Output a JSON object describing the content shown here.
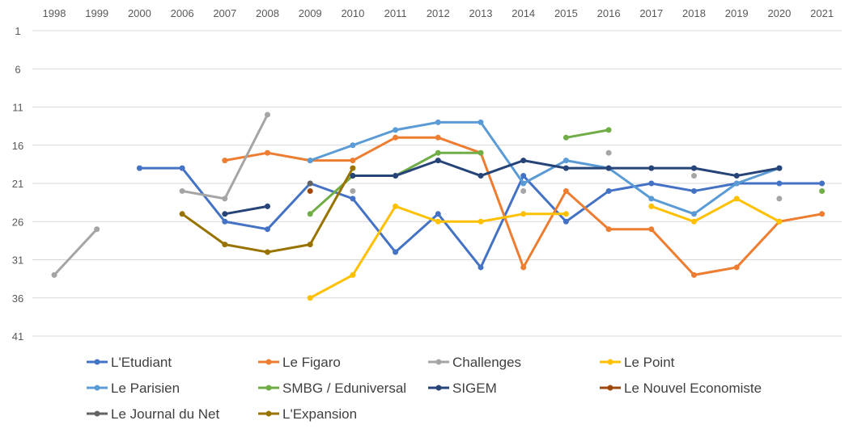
{
  "chart_data": {
    "type": "line",
    "categories": [
      "1998",
      "1999",
      "2000",
      "2006",
      "2007",
      "2008",
      "2009",
      "2010",
      "2011",
      "2012",
      "2013",
      "2014",
      "2015",
      "2016",
      "2017",
      "2018",
      "2019",
      "2020",
      "2021"
    ],
    "y_ticks": [
      "1",
      "6",
      "11",
      "16",
      "21",
      "26",
      "31",
      "36",
      "41"
    ],
    "ylim": [
      1,
      41
    ],
    "y_reversed": true,
    "x_axis_position": "top",
    "grid": true,
    "legend_position": "bottom",
    "series": [
      {
        "name": "L'Etudiant",
        "color": "#4472C4",
        "values": [
          null,
          null,
          19,
          19,
          26,
          27,
          21,
          23,
          30,
          25,
          32,
          20,
          26,
          22,
          21,
          22,
          21,
          21,
          21
        ]
      },
      {
        "name": "Le Figaro",
        "color": "#ED7D31",
        "values": [
          null,
          null,
          null,
          null,
          18,
          17,
          18,
          18,
          15,
          15,
          17,
          32,
          22,
          27,
          27,
          33,
          32,
          26,
          25
        ]
      },
      {
        "name": "Challenges",
        "color": "#A5A5A5",
        "values": [
          33,
          27,
          null,
          22,
          23,
          12,
          null,
          22,
          null,
          null,
          null,
          22,
          null,
          17,
          null,
          20,
          null,
          23,
          null
        ]
      },
      {
        "name": "Le Point",
        "color": "#FFC000",
        "values": [
          null,
          null,
          null,
          null,
          null,
          null,
          36,
          33,
          24,
          26,
          26,
          25,
          25,
          null,
          24,
          26,
          23,
          26,
          null
        ]
      },
      {
        "name": "Le Parisien",
        "color": "#5B9BD5",
        "values": [
          null,
          null,
          null,
          null,
          null,
          null,
          18,
          16,
          14,
          13,
          13,
          21,
          18,
          19,
          23,
          25,
          21,
          19,
          null
        ]
      },
      {
        "name": "SMBG / Eduniversal",
        "color": "#70AD47",
        "values": [
          null,
          null,
          null,
          null,
          null,
          null,
          25,
          20,
          20,
          17,
          17,
          null,
          15,
          14,
          null,
          null,
          null,
          null,
          22
        ]
      },
      {
        "name": "SIGEM",
        "color": "#264478",
        "values": [
          null,
          null,
          null,
          null,
          25,
          24,
          null,
          20,
          20,
          18,
          20,
          18,
          19,
          19,
          19,
          19,
          20,
          19,
          null
        ]
      },
      {
        "name": "Le Nouvel Economiste",
        "color": "#9E480E",
        "values": [
          null,
          null,
          null,
          null,
          null,
          null,
          22,
          null,
          null,
          null,
          null,
          null,
          null,
          null,
          null,
          null,
          null,
          null,
          null
        ]
      },
      {
        "name": "Le Journal du Net",
        "color": "#636363",
        "values": [
          null,
          null,
          null,
          null,
          null,
          null,
          21,
          null,
          null,
          null,
          null,
          null,
          null,
          null,
          null,
          null,
          null,
          null,
          null
        ]
      },
      {
        "name": "L'Expansion",
        "color": "#997300",
        "values": [
          null,
          null,
          null,
          25,
          29,
          30,
          29,
          19,
          null,
          null,
          null,
          null,
          null,
          null,
          null,
          null,
          null,
          null,
          null
        ]
      }
    ]
  }
}
